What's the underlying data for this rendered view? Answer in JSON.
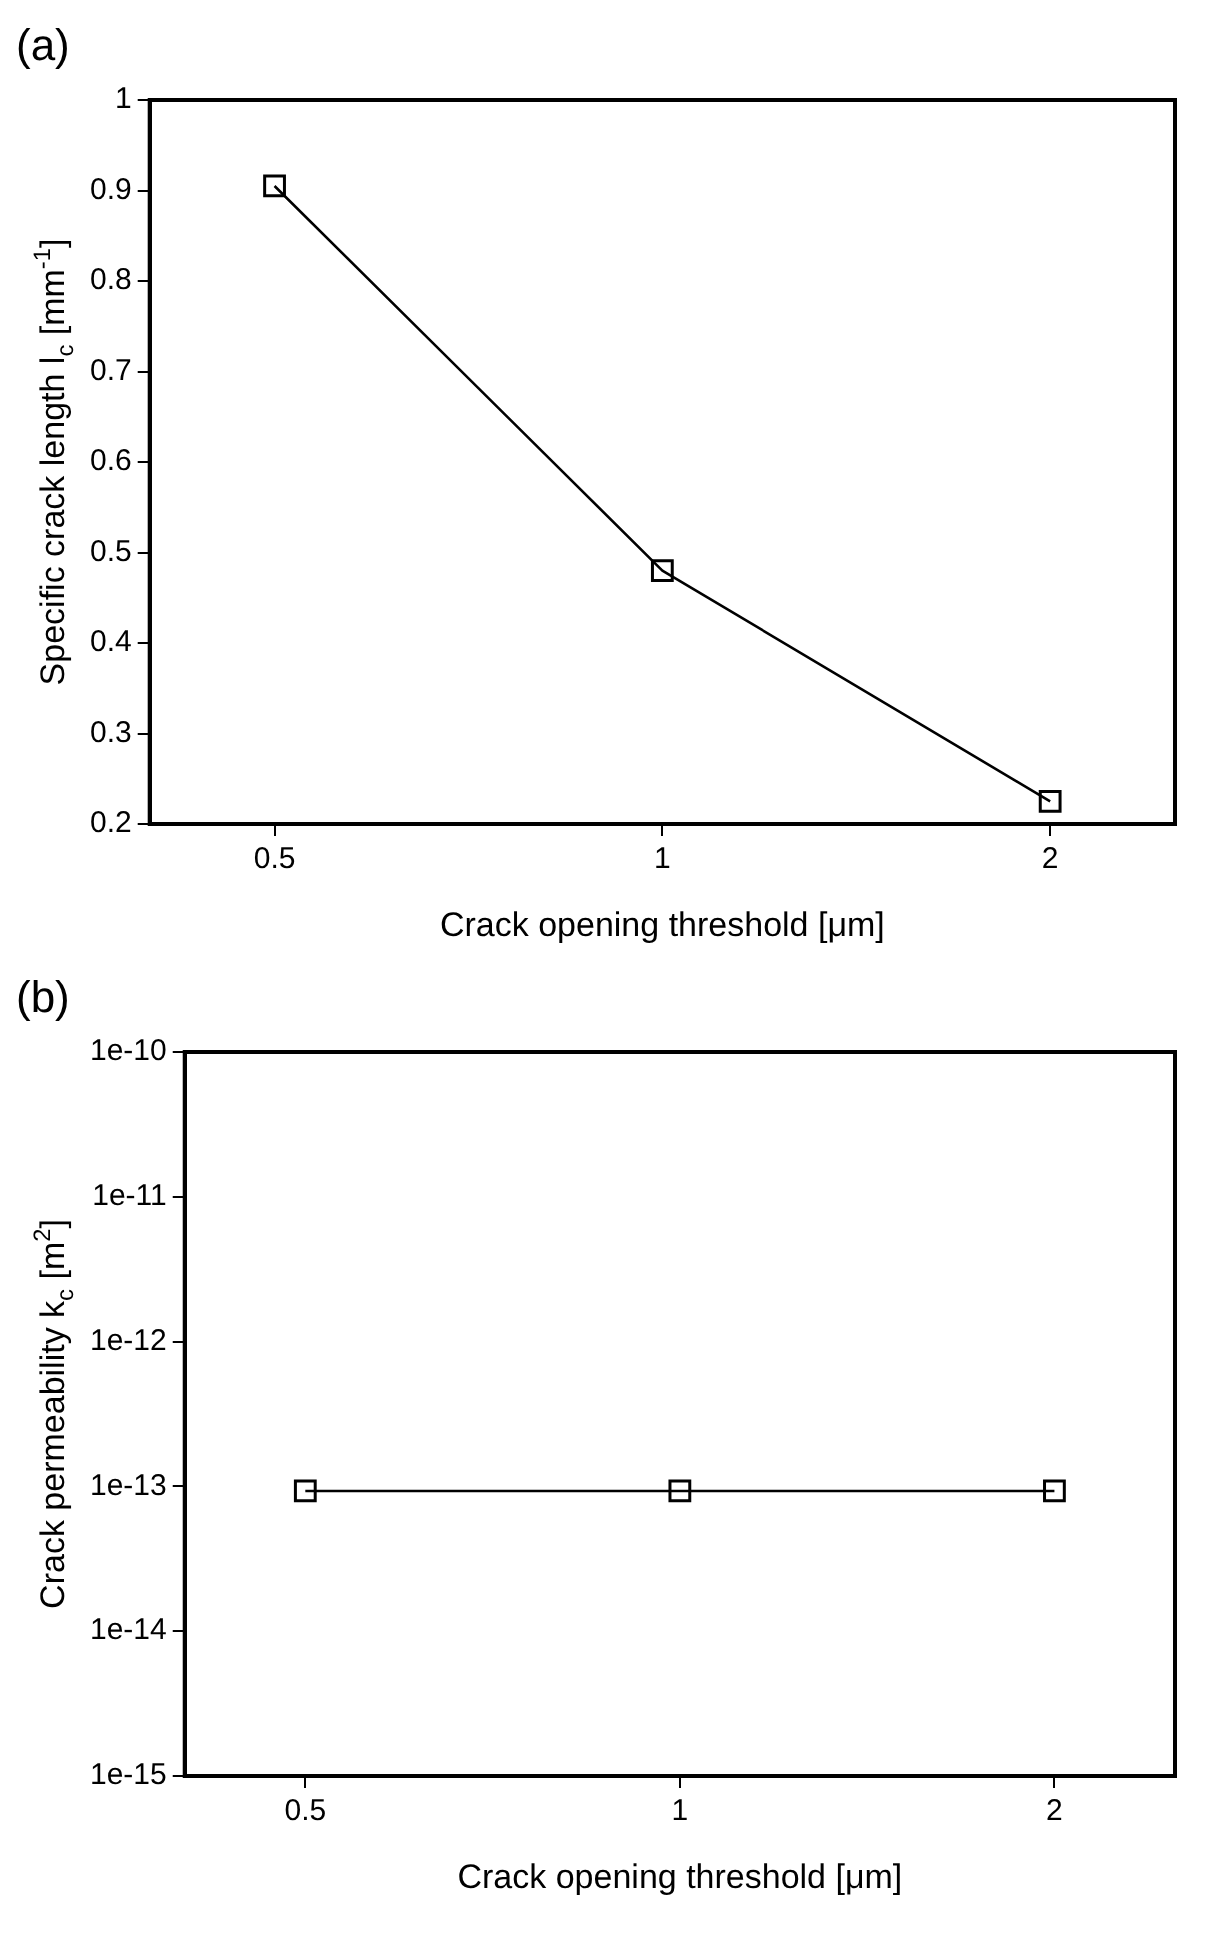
{
  "chart_data": [
    {
      "type": "line",
      "title": "(a)",
      "xlabel": "Crack opening threshold [μm]",
      "ylabel": "Specific crack length l$_{c}$ [mm$^{-1}$]",
      "x": [
        0.5,
        1,
        2
      ],
      "values": [
        0.905,
        0.48,
        0.225
      ],
      "color": "#000000",
      "xlim": [
        0.4,
        2.5
      ],
      "xticks": [
        0.5,
        1,
        2
      ],
      "ylim": [
        0.2,
        1
      ],
      "yticks": [
        0.2,
        0.3,
        0.4,
        0.5,
        0.6,
        0.7,
        0.8,
        0.9,
        1
      ],
      "log": "x",
      "grid": false,
      "legend": false,
      "marker": "square",
      "line_style": "solid"
    },
    {
      "type": "line",
      "title": "(b)",
      "xlabel": "Crack opening threshold [μm]",
      "ylabel": "Crack permeability k$_{c}$ [m$^{2}$]",
      "x": [
        0.5,
        1,
        2
      ],
      "values": [
        9.3e-14,
        9.3e-14,
        9.3e-14
      ],
      "color": "#000000",
      "xlim": [
        0.4,
        2.5
      ],
      "xticks": [
        0.5,
        1,
        2
      ],
      "ylim": [
        1e-15,
        1e-10
      ],
      "yticks": [
        {
          "value": 1e-15,
          "label": "1e-15"
        },
        {
          "value": 1e-14,
          "label": "1e-14"
        },
        {
          "value": 1e-13,
          "label": "1e-13"
        },
        {
          "value": 1e-12,
          "label": "1e-12"
        },
        {
          "value": 1e-11,
          "label": "1e-11"
        },
        {
          "value": 1e-10,
          "label": "1e-10"
        }
      ],
      "log": "xy",
      "grid": false,
      "legend": false,
      "marker": "square",
      "line_style": "solid"
    }
  ]
}
